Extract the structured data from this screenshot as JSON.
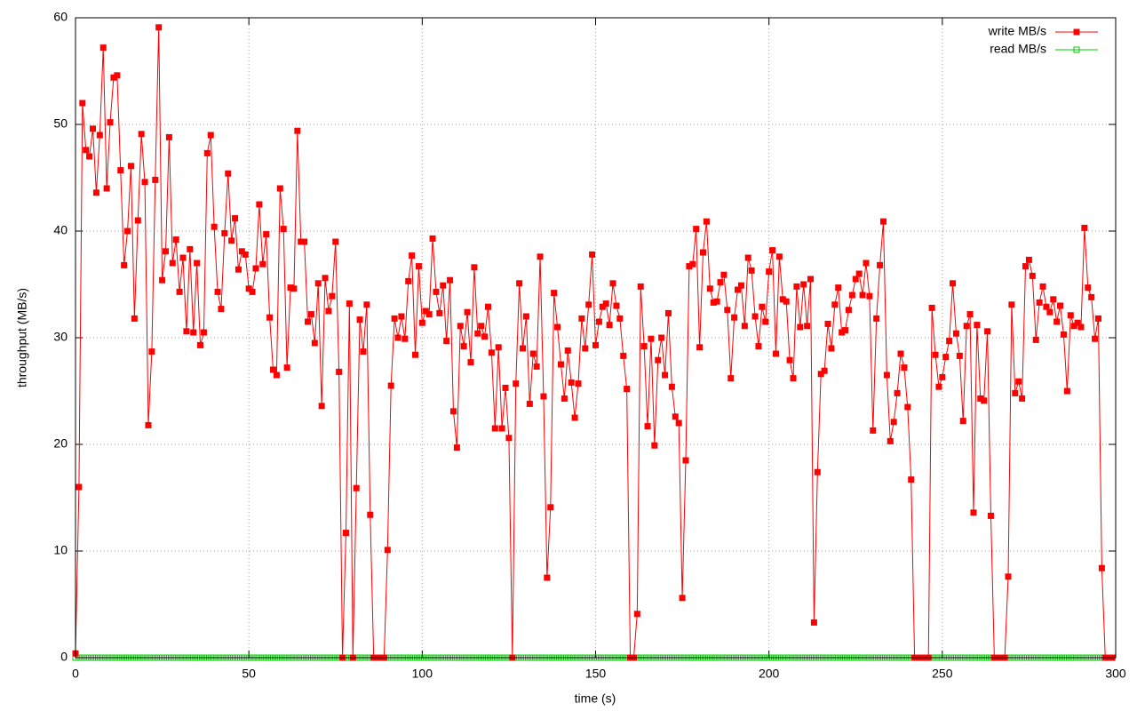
{
  "chart_data": {
    "type": "line",
    "xlabel": "time (s)",
    "ylabel": "throughput (MB/s)",
    "xlim": [
      0,
      300
    ],
    "ylim": [
      0,
      60
    ],
    "xticks": [
      0,
      50,
      100,
      150,
      200,
      250,
      300
    ],
    "yticks": [
      0,
      10,
      20,
      30,
      40,
      50,
      60
    ],
    "grid": true,
    "legend": "top right",
    "x": [
      0,
      1,
      2,
      3,
      4,
      5,
      6,
      7,
      8,
      9,
      10,
      11,
      12,
      13,
      14,
      15,
      16,
      17,
      18,
      19,
      20,
      21,
      22,
      23,
      24,
      25,
      26,
      27,
      28,
      29,
      30,
      31,
      32,
      33,
      34,
      35,
      36,
      37,
      38,
      39,
      40,
      41,
      42,
      43,
      44,
      45,
      46,
      47,
      48,
      49,
      50,
      51,
      52,
      53,
      54,
      55,
      56,
      57,
      58,
      59,
      60,
      61,
      62,
      63,
      64,
      65,
      66,
      67,
      68,
      69,
      70,
      71,
      72,
      73,
      74,
      75,
      76,
      77,
      78,
      79,
      80,
      81,
      82,
      83,
      84,
      85,
      86,
      87,
      88,
      89,
      90,
      91,
      92,
      93,
      94,
      95,
      96,
      97,
      98,
      99,
      100,
      101,
      102,
      103,
      104,
      105,
      106,
      107,
      108,
      109,
      110,
      111,
      112,
      113,
      114,
      115,
      116,
      117,
      118,
      119,
      120,
      121,
      122,
      123,
      124,
      125,
      126,
      127,
      128,
      129,
      130,
      131,
      132,
      133,
      134,
      135,
      136,
      137,
      138,
      139,
      140,
      141,
      142,
      143,
      144,
      145,
      146,
      147,
      148,
      149,
      150,
      151,
      152,
      153,
      154,
      155,
      156,
      157,
      158,
      159,
      160,
      161,
      162,
      163,
      164,
      165,
      166,
      167,
      168,
      169,
      170,
      171,
      172,
      173,
      174,
      175,
      176,
      177,
      178,
      179,
      180,
      181,
      182,
      183,
      184,
      185,
      186,
      187,
      188,
      189,
      190,
      191,
      192,
      193,
      194,
      195,
      196,
      197,
      198,
      199,
      200,
      201,
      202,
      203,
      204,
      205,
      206,
      207,
      208,
      209,
      210,
      211,
      212,
      213,
      214,
      215,
      216,
      217,
      218,
      219,
      220,
      221,
      222,
      223,
      224,
      225,
      226,
      227,
      228,
      229,
      230,
      231,
      232,
      233,
      234,
      235,
      236,
      237,
      238,
      239,
      240,
      241,
      242,
      243,
      244,
      245,
      246,
      247,
      248,
      249,
      250,
      251,
      252,
      253,
      254,
      255,
      256,
      257,
      258,
      259,
      260,
      261,
      262,
      263,
      264,
      265,
      266,
      267,
      268,
      269,
      270,
      271,
      272,
      273,
      274,
      275,
      276,
      277,
      278,
      279,
      280,
      281,
      282,
      283,
      284,
      285,
      286,
      287,
      288,
      289,
      290,
      291,
      292,
      293,
      294,
      295,
      296,
      297,
      298,
      299
    ],
    "series": [
      {
        "name": "write MB/s",
        "color": "#ff0000",
        "marker": "filled-square",
        "values": [
          0.4,
          16,
          52,
          47.6,
          47,
          49.6,
          43.6,
          49,
          57.2,
          44,
          50.2,
          54.4,
          54.6,
          45.7,
          36.8,
          40,
          46.1,
          31.8,
          41,
          49.1,
          44.6,
          21.8,
          28.7,
          44.8,
          59.1,
          35.4,
          38.1,
          48.8,
          37,
          39.2,
          34.3,
          37.5,
          30.6,
          38.3,
          30.5,
          37,
          29.3,
          30.5,
          47.3,
          49,
          40.4,
          34.3,
          32.7,
          39.8,
          45.4,
          39.1,
          41.2,
          36.4,
          38.1,
          37.8,
          34.6,
          34.3,
          36.5,
          42.5,
          36.9,
          39.7,
          31.9,
          27,
          26.5,
          44,
          40.2,
          27.2,
          34.7,
          34.6,
          49.4,
          39,
          39,
          31.5,
          32.2,
          29.5,
          35.1,
          23.6,
          35.6,
          32.5,
          33.9,
          39,
          26.8,
          0,
          11.7,
          33.2,
          0,
          15.9,
          31.7,
          28.7,
          33.1,
          13.4,
          0,
          0,
          0,
          0,
          10.1,
          25.5,
          31.8,
          30,
          32,
          29.9,
          35.3,
          37.7,
          28.4,
          36.7,
          31.4,
          32.5,
          32.2,
          39.3,
          34.3,
          32.3,
          34.9,
          29.7,
          35.4,
          23.1,
          19.7,
          31.1,
          29.2,
          32.4,
          27.7,
          36.6,
          30.4,
          31.1,
          30.1,
          32.9,
          28.6,
          21.5,
          29.1,
          21.5,
          25.3,
          20.6,
          0,
          25.7,
          35.1,
          29,
          32,
          23.8,
          28.5,
          27.3,
          37.6,
          24.5,
          7.5,
          14.1,
          34.2,
          31,
          27.5,
          24.3,
          28.8,
          25.8,
          22.5,
          25.7,
          31.8,
          29,
          33.1,
          37.8,
          29.3,
          31.5,
          32.9,
          33.2,
          31.2,
          35.1,
          33,
          31.8,
          28.3,
          25.2,
          0,
          0,
          4.1,
          34.8,
          29.2,
          21.7,
          29.9,
          19.9,
          27.9,
          30,
          26.5,
          32.3,
          25.4,
          22.6,
          22,
          5.6,
          18.5,
          36.7,
          36.9,
          40.2,
          29.1,
          38,
          40.9,
          34.6,
          33.3,
          33.4,
          35.2,
          35.9,
          32.6,
          26.2,
          31.9,
          34.5,
          34.9,
          31.1,
          37.5,
          36.3,
          32,
          29.2,
          32.9,
          31.5,
          36.2,
          38.2,
          28.5,
          37.6,
          33.6,
          33.4,
          27.9,
          26.2,
          34.8,
          31,
          35,
          31.1,
          35.5,
          3.3,
          17.4,
          26.6,
          26.9,
          31.3,
          29,
          33.1,
          34.7,
          30.5,
          30.7,
          32.6,
          34,
          35.5,
          36,
          34,
          37,
          33.9,
          21.3,
          31.8,
          36.8,
          40.9,
          26.5,
          20.3,
          22.1,
          24.8,
          28.5,
          27.2,
          23.5,
          16.7,
          0,
          0,
          0,
          0,
          0,
          32.8,
          28.4,
          25.4,
          26.3,
          28.2,
          29.7,
          35.1,
          30.4,
          28.3,
          22.2,
          31.1,
          32.2,
          13.6,
          31.2,
          24.3,
          24.1,
          30.6,
          13.3,
          0,
          0,
          0,
          0,
          7.6,
          33.1,
          24.8,
          25.9,
          24.3,
          36.7,
          37.3,
          35.8,
          29.8,
          33.3,
          34.8,
          32.9,
          32.4,
          33.6,
          31.5,
          33,
          30.3,
          25,
          32.1,
          31.1,
          31.4,
          31,
          40.3,
          34.7,
          33.8,
          29.9,
          31.8,
          8.4,
          0,
          0,
          0
        ]
      },
      {
        "name": "read MB/s",
        "color": "#00cc00",
        "marker": "open-square",
        "values": [
          0,
          0,
          0,
          0,
          0,
          0,
          0,
          0,
          0,
          0,
          0,
          0,
          0,
          0,
          0,
          0,
          0,
          0,
          0,
          0,
          0,
          0,
          0,
          0,
          0,
          0,
          0,
          0,
          0,
          0,
          0,
          0,
          0,
          0,
          0,
          0,
          0,
          0,
          0,
          0,
          0,
          0,
          0,
          0,
          0,
          0,
          0,
          0,
          0,
          0,
          0,
          0,
          0,
          0,
          0,
          0,
          0,
          0,
          0,
          0,
          0,
          0,
          0,
          0,
          0,
          0,
          0,
          0,
          0,
          0,
          0,
          0,
          0,
          0,
          0,
          0,
          0,
          0,
          0,
          0,
          0,
          0,
          0,
          0,
          0,
          0,
          0,
          0,
          0,
          0,
          0,
          0,
          0,
          0,
          0,
          0,
          0,
          0,
          0,
          0,
          0,
          0,
          0,
          0,
          0,
          0,
          0,
          0,
          0,
          0,
          0,
          0,
          0,
          0,
          0,
          0,
          0,
          0,
          0,
          0,
          0,
          0,
          0,
          0,
          0,
          0,
          0,
          0,
          0,
          0,
          0,
          0,
          0,
          0,
          0,
          0,
          0,
          0,
          0,
          0,
          0,
          0,
          0,
          0,
          0,
          0,
          0,
          0,
          0,
          0,
          0,
          0,
          0,
          0,
          0,
          0,
          0,
          0,
          0,
          0,
          0,
          0,
          0,
          0,
          0,
          0,
          0,
          0,
          0,
          0,
          0,
          0,
          0,
          0,
          0,
          0,
          0,
          0,
          0,
          0,
          0,
          0,
          0,
          0,
          0,
          0,
          0,
          0,
          0,
          0,
          0,
          0,
          0,
          0,
          0,
          0,
          0,
          0,
          0,
          0,
          0,
          0,
          0,
          0,
          0,
          0,
          0,
          0,
          0,
          0,
          0,
          0,
          0,
          0,
          0,
          0,
          0,
          0,
          0,
          0,
          0,
          0,
          0,
          0,
          0,
          0,
          0,
          0,
          0,
          0,
          0,
          0,
          0,
          0,
          0,
          0,
          0,
          0,
          0,
          0,
          0,
          0,
          0,
          0,
          0,
          0,
          0,
          0,
          0,
          0,
          0,
          0,
          0,
          0,
          0,
          0,
          0,
          0,
          0,
          0,
          0,
          0,
          0,
          0,
          0,
          0,
          0,
          0,
          0,
          0,
          0,
          0,
          0,
          0,
          0,
          0,
          0,
          0,
          0,
          0,
          0,
          0,
          0,
          0,
          0,
          0,
          0,
          0,
          0,
          0,
          0,
          0,
          0,
          0,
          0,
          0,
          0,
          0,
          0,
          0
        ]
      }
    ]
  }
}
